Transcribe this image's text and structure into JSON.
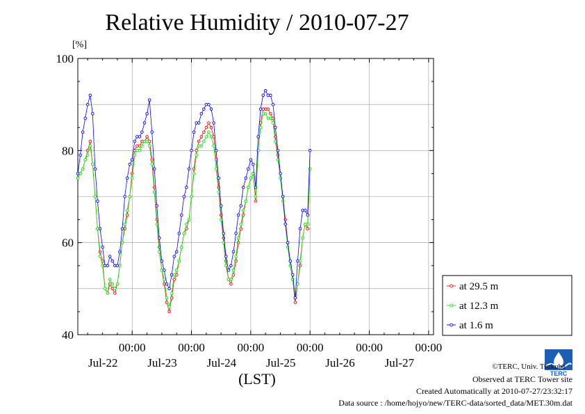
{
  "header": {
    "title": "Relative Humidity / 2010-07-27",
    "unit": "[%]"
  },
  "footer": {
    "xlabel": "(LST)",
    "copyright": "©TERC, Univ. Tsukuba",
    "observed": "Observed at TERC Tower site",
    "created": "Created Automatically at 2010-07-27/23:32:17",
    "source": "Data source : /home/hojyo/new/TERC-data/sorted_data/MET.30m.dat",
    "logo_text": "TERC"
  },
  "colors": {
    "s295": "#ff0000",
    "s123": "#00ee00",
    "s16": "#0000ff",
    "grid": "#999999"
  },
  "chart_data": {
    "type": "line",
    "title": "Relative Humidity / 2010-07-27",
    "ylabel": "[%]",
    "xlabel": "(LST)",
    "ylim": [
      40,
      100
    ],
    "yticks": [
      40,
      60,
      80,
      100
    ],
    "xlim": [
      "2010-07-21 02:00",
      "2010-07-27 02:00"
    ],
    "xticks": [
      {
        "time": "00:00",
        "date": "Jul-22"
      },
      {
        "time": "00:00",
        "date": "Jul-23"
      },
      {
        "time": "00:00",
        "date": "Jul-24"
      },
      {
        "time": "00:00",
        "date": "Jul-25"
      },
      {
        "time": "00:00",
        "date": "Jul-26"
      },
      {
        "time": "00:00",
        "date": "Jul-27"
      }
    ],
    "grid": true,
    "legend_position": "right-bottom",
    "x_unit": "hours since 2010-07-21 00:00",
    "series": [
      {
        "name": "at 29.5 m",
        "color": "#ff0000",
        "points": [
          [
            2,
            74
          ],
          [
            3,
            75
          ],
          [
            4,
            76
          ],
          [
            5,
            78
          ],
          [
            6,
            80
          ],
          [
            7,
            82
          ],
          [
            8,
            77
          ],
          [
            9,
            70
          ],
          [
            10,
            63
          ],
          [
            11,
            58
          ],
          [
            12,
            56
          ],
          [
            13,
            50
          ],
          [
            14,
            49
          ],
          [
            15,
            51
          ],
          [
            16,
            50
          ],
          [
            17,
            49
          ],
          [
            18,
            51
          ],
          [
            19,
            55
          ],
          [
            20,
            60
          ],
          [
            21,
            63
          ],
          [
            22,
            66
          ],
          [
            23,
            70
          ],
          [
            24,
            75
          ],
          [
            25,
            80
          ],
          [
            26,
            81
          ],
          [
            27,
            81
          ],
          [
            28,
            82
          ],
          [
            29,
            82
          ],
          [
            30,
            83
          ],
          [
            31,
            82
          ],
          [
            32,
            78
          ],
          [
            33,
            72
          ],
          [
            34,
            65
          ],
          [
            35,
            59
          ],
          [
            36,
            54
          ],
          [
            37,
            51
          ],
          [
            38,
            47
          ],
          [
            39,
            45
          ],
          [
            40,
            48
          ],
          [
            41,
            52
          ],
          [
            42,
            53
          ],
          [
            43,
            56
          ],
          [
            44,
            59
          ],
          [
            45,
            62
          ],
          [
            46,
            63
          ],
          [
            47,
            65
          ],
          [
            48,
            70
          ],
          [
            49,
            76
          ],
          [
            50,
            80
          ],
          [
            51,
            82
          ],
          [
            52,
            83
          ],
          [
            53,
            84
          ],
          [
            54,
            85
          ],
          [
            55,
            86
          ],
          [
            56,
            85
          ],
          [
            57,
            83
          ],
          [
            58,
            78
          ],
          [
            59,
            72
          ],
          [
            60,
            66
          ],
          [
            61,
            61
          ],
          [
            62,
            56
          ],
          [
            63,
            52
          ],
          [
            64,
            51
          ],
          [
            65,
            53
          ],
          [
            66,
            56
          ],
          [
            67,
            60
          ],
          [
            68,
            63
          ],
          [
            69,
            66
          ],
          [
            70,
            69
          ],
          [
            71,
            72
          ],
          [
            72,
            74
          ],
          [
            73,
            75
          ],
          [
            74,
            69
          ],
          [
            75,
            80
          ],
          [
            76,
            86
          ],
          [
            77,
            89
          ],
          [
            78,
            89
          ],
          [
            79,
            89
          ],
          [
            80,
            88
          ],
          [
            81,
            87
          ],
          [
            82,
            83
          ],
          [
            83,
            79
          ],
          [
            84,
            74
          ],
          [
            85,
            70
          ],
          [
            86,
            65
          ],
          [
            87,
            60
          ],
          [
            88,
            55
          ],
          [
            89,
            52
          ],
          [
            90,
            47
          ],
          [
            91,
            51
          ],
          [
            92,
            55
          ],
          [
            93,
            61
          ],
          [
            94,
            64
          ],
          [
            95,
            63
          ],
          [
            96,
            76
          ]
        ]
      },
      {
        "name": "at 12.3 m",
        "color": "#00ee00",
        "points": [
          [
            2,
            74
          ],
          [
            3,
            75
          ],
          [
            4,
            76
          ],
          [
            5,
            78
          ],
          [
            6,
            79
          ],
          [
            7,
            81
          ],
          [
            8,
            77
          ],
          [
            9,
            70
          ],
          [
            10,
            63
          ],
          [
            11,
            57
          ],
          [
            12,
            55
          ],
          [
            13,
            50
          ],
          [
            14,
            49
          ],
          [
            15,
            52
          ],
          [
            16,
            51
          ],
          [
            17,
            50
          ],
          [
            18,
            51
          ],
          [
            19,
            55
          ],
          [
            20,
            60
          ],
          [
            21,
            64
          ],
          [
            22,
            67
          ],
          [
            23,
            70
          ],
          [
            24,
            74
          ],
          [
            25,
            79
          ],
          [
            26,
            80
          ],
          [
            27,
            80
          ],
          [
            28,
            81
          ],
          [
            29,
            82
          ],
          [
            30,
            82
          ],
          [
            31,
            81
          ],
          [
            32,
            77
          ],
          [
            33,
            71
          ],
          [
            34,
            64
          ],
          [
            35,
            58
          ],
          [
            36,
            54
          ],
          [
            37,
            52
          ],
          [
            38,
            48
          ],
          [
            39,
            46
          ],
          [
            40,
            49
          ],
          [
            41,
            53
          ],
          [
            42,
            54
          ],
          [
            43,
            56
          ],
          [
            44,
            59
          ],
          [
            45,
            62
          ],
          [
            46,
            64
          ],
          [
            47,
            65
          ],
          [
            48,
            70
          ],
          [
            49,
            75
          ],
          [
            50,
            79
          ],
          [
            51,
            81
          ],
          [
            52,
            81
          ],
          [
            53,
            82
          ],
          [
            54,
            83
          ],
          [
            55,
            84
          ],
          [
            56,
            83
          ],
          [
            57,
            81
          ],
          [
            58,
            76
          ],
          [
            59,
            71
          ],
          [
            60,
            65
          ],
          [
            61,
            60
          ],
          [
            62,
            55
          ],
          [
            63,
            52
          ],
          [
            64,
            52
          ],
          [
            65,
            54
          ],
          [
            66,
            57
          ],
          [
            67,
            61
          ],
          [
            68,
            64
          ],
          [
            69,
            67
          ],
          [
            70,
            69
          ],
          [
            71,
            72
          ],
          [
            72,
            74
          ],
          [
            73,
            75
          ],
          [
            74,
            70
          ],
          [
            75,
            80
          ],
          [
            76,
            85
          ],
          [
            77,
            88
          ],
          [
            78,
            88
          ],
          [
            79,
            87
          ],
          [
            80,
            87
          ],
          [
            81,
            86
          ],
          [
            82,
            82
          ],
          [
            83,
            78
          ],
          [
            84,
            74
          ],
          [
            85,
            69
          ],
          [
            86,
            64
          ],
          [
            87,
            59
          ],
          [
            88,
            55
          ],
          [
            89,
            52
          ],
          [
            90,
            48
          ],
          [
            91,
            51
          ],
          [
            92,
            56
          ],
          [
            93,
            61
          ],
          [
            94,
            64
          ],
          [
            95,
            64
          ],
          [
            96,
            76
          ]
        ]
      },
      {
        "name": "at 1.6 m",
        "color": "#0000ff",
        "points": [
          [
            2,
            75
          ],
          [
            3,
            79
          ],
          [
            4,
            84
          ],
          [
            5,
            87
          ],
          [
            6,
            90
          ],
          [
            7,
            92
          ],
          [
            8,
            88
          ],
          [
            9,
            76
          ],
          [
            10,
            69
          ],
          [
            11,
            63
          ],
          [
            12,
            59
          ],
          [
            13,
            55
          ],
          [
            14,
            55
          ],
          [
            15,
            57
          ],
          [
            16,
            56
          ],
          [
            17,
            55
          ],
          [
            18,
            55
          ],
          [
            19,
            58
          ],
          [
            20,
            63
          ],
          [
            21,
            70
          ],
          [
            22,
            74
          ],
          [
            23,
            77
          ],
          [
            24,
            78
          ],
          [
            25,
            82
          ],
          [
            26,
            83
          ],
          [
            27,
            83
          ],
          [
            28,
            84
          ],
          [
            29,
            86
          ],
          [
            30,
            88
          ],
          [
            31,
            91
          ],
          [
            32,
            84
          ],
          [
            33,
            76
          ],
          [
            34,
            68
          ],
          [
            35,
            61
          ],
          [
            36,
            56
          ],
          [
            37,
            54
          ],
          [
            38,
            51
          ],
          [
            39,
            50
          ],
          [
            40,
            53
          ],
          [
            41,
            57
          ],
          [
            42,
            58
          ],
          [
            43,
            62
          ],
          [
            44,
            66
          ],
          [
            45,
            70
          ],
          [
            46,
            72
          ],
          [
            47,
            76
          ],
          [
            48,
            80
          ],
          [
            49,
            84
          ],
          [
            50,
            86
          ],
          [
            51,
            86
          ],
          [
            52,
            88
          ],
          [
            53,
            89
          ],
          [
            54,
            90
          ],
          [
            55,
            90
          ],
          [
            56,
            89
          ],
          [
            57,
            86
          ],
          [
            58,
            80
          ],
          [
            59,
            74
          ],
          [
            60,
            68
          ],
          [
            61,
            62
          ],
          [
            62,
            57
          ],
          [
            63,
            54
          ],
          [
            64,
            55
          ],
          [
            65,
            58
          ],
          [
            66,
            62
          ],
          [
            67,
            66
          ],
          [
            68,
            68
          ],
          [
            69,
            72
          ],
          [
            70,
            74
          ],
          [
            71,
            76
          ],
          [
            72,
            78
          ],
          [
            73,
            77
          ],
          [
            74,
            72
          ],
          [
            75,
            83
          ],
          [
            76,
            89
          ],
          [
            77,
            92
          ],
          [
            78,
            93
          ],
          [
            79,
            92
          ],
          [
            80,
            92
          ],
          [
            81,
            90
          ],
          [
            82,
            85
          ],
          [
            83,
            80
          ],
          [
            84,
            75
          ],
          [
            85,
            70
          ],
          [
            86,
            64
          ],
          [
            87,
            60
          ],
          [
            88,
            56
          ],
          [
            89,
            53
          ],
          [
            90,
            48
          ],
          [
            91,
            56
          ],
          [
            92,
            63
          ],
          [
            93,
            67
          ],
          [
            94,
            67
          ],
          [
            95,
            66
          ],
          [
            96,
            80
          ]
        ]
      }
    ]
  }
}
